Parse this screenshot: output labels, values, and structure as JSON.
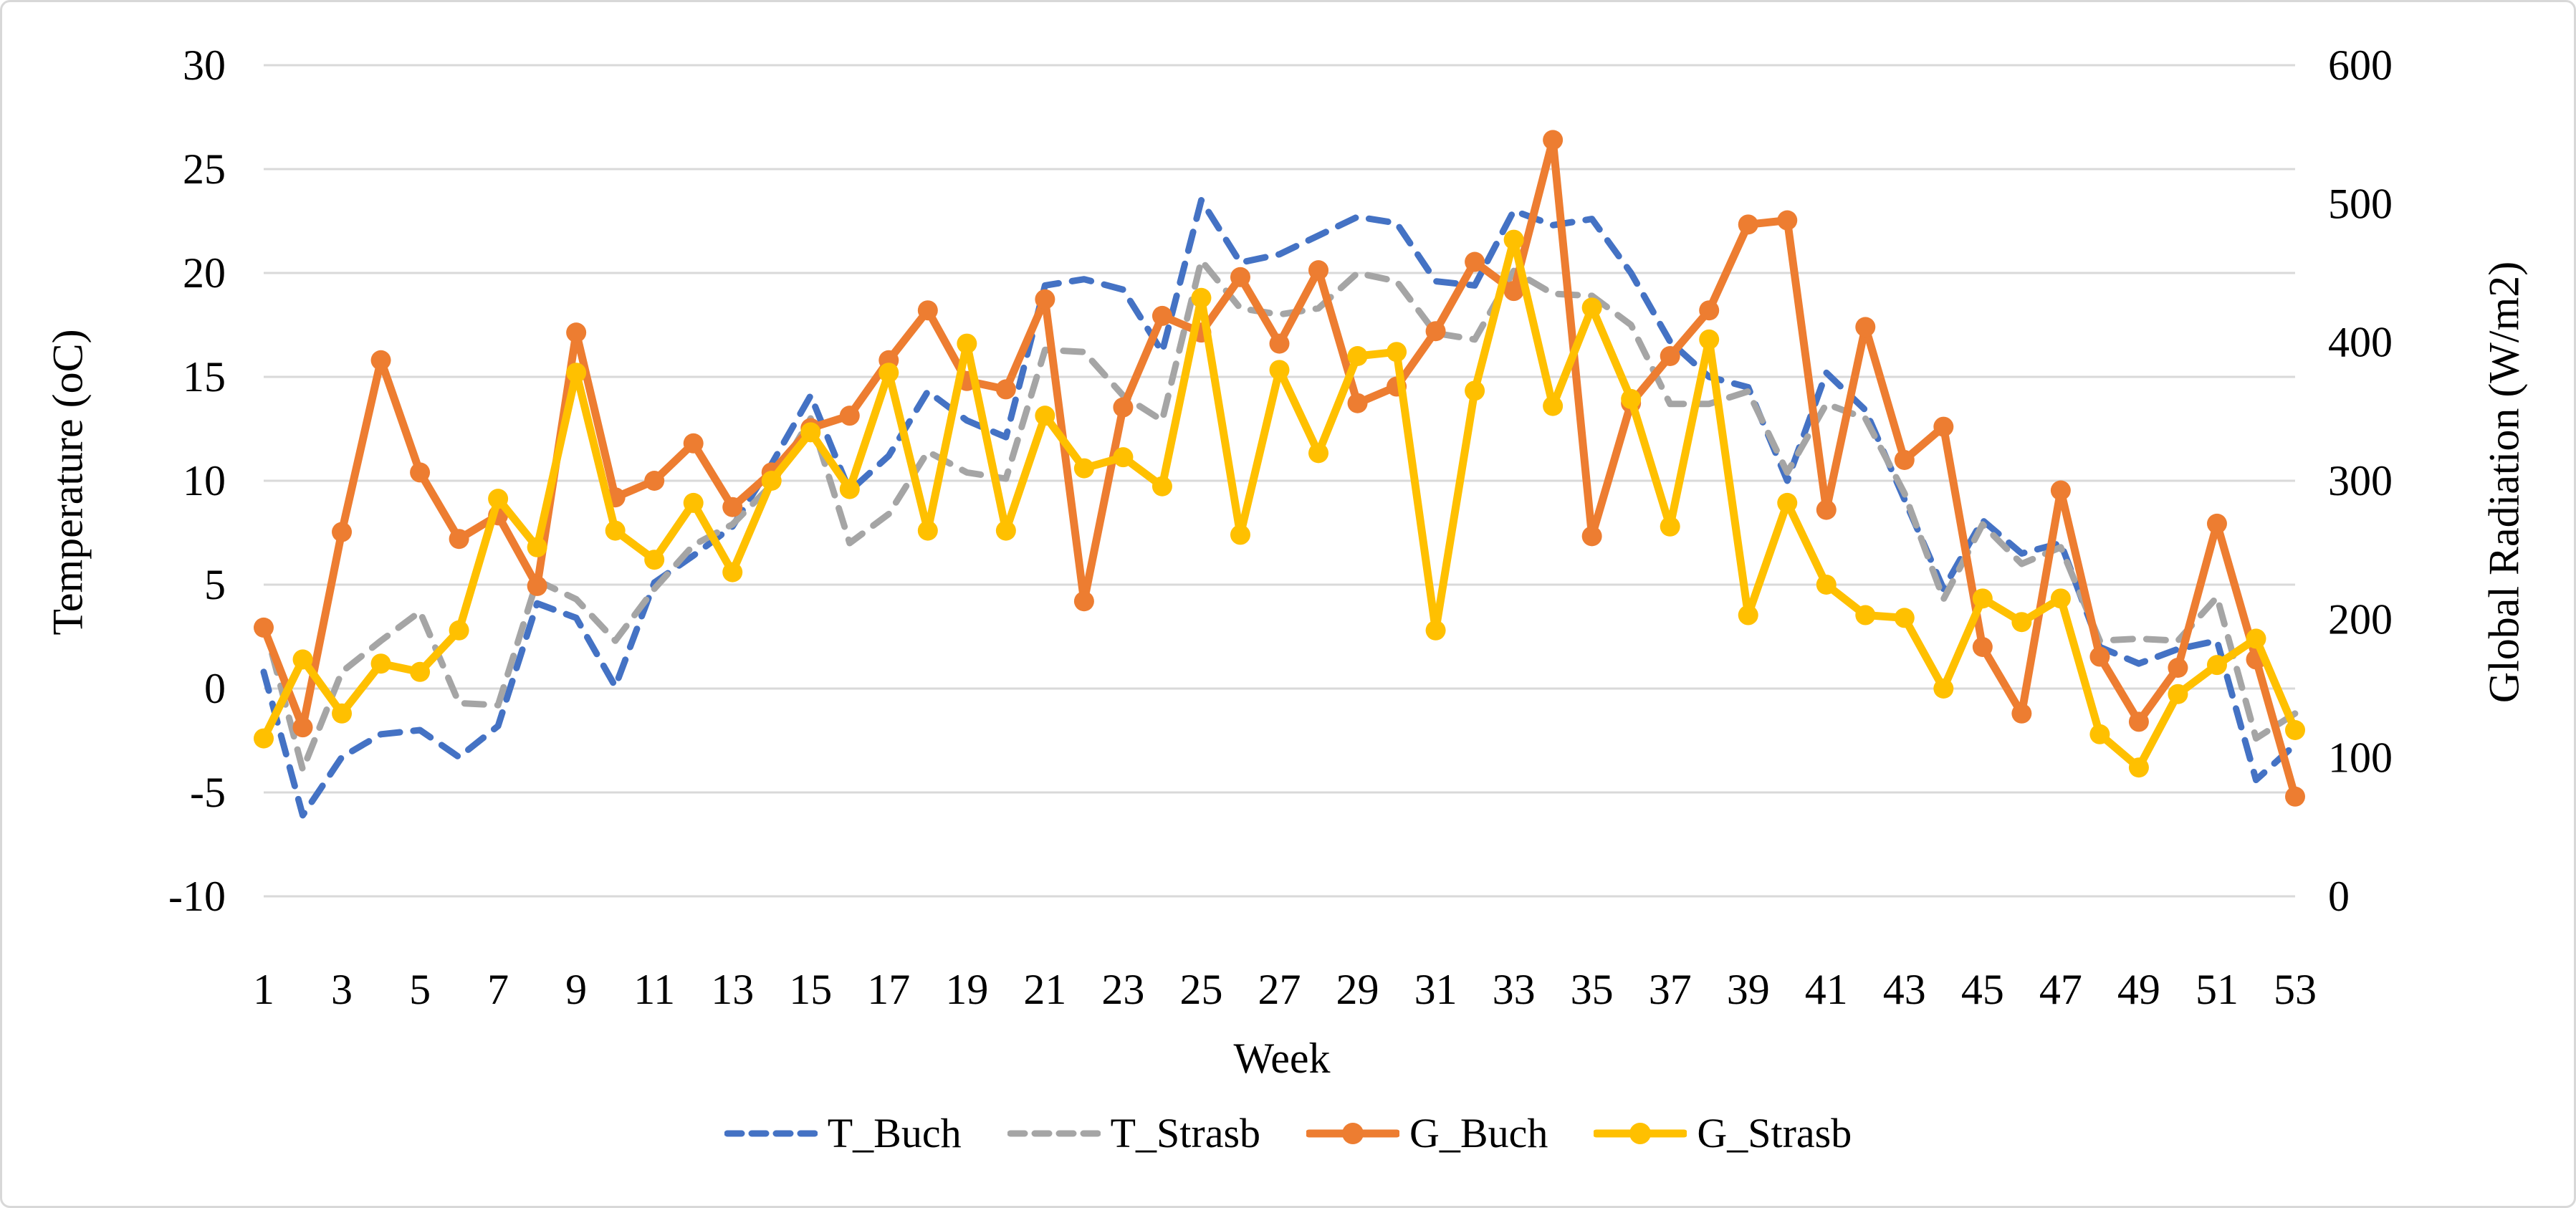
{
  "figure": {
    "left_axis_title": "Temperature (oC)",
    "right_axis_title": "Global Radiation (W/m2)",
    "x_axis_title": "Week",
    "background": "#FFFFFF",
    "border_color": "#D8D8D8",
    "gridline_color": "#D9D9D9",
    "text_color": "#000000"
  },
  "chart_data": {
    "type": "line",
    "title": "",
    "xlabel": "Week",
    "x": [
      1,
      2,
      3,
      4,
      5,
      6,
      7,
      8,
      9,
      10,
      11,
      12,
      13,
      14,
      15,
      16,
      17,
      18,
      19,
      20,
      21,
      22,
      23,
      24,
      25,
      26,
      27,
      28,
      29,
      30,
      31,
      32,
      33,
      34,
      35,
      36,
      37,
      38,
      39,
      40,
      41,
      42,
      43,
      44,
      45,
      46,
      47,
      48,
      49,
      50,
      51,
      52,
      53
    ],
    "x_tick_labels": [
      "1",
      "3",
      "5",
      "7",
      "9",
      "11",
      "13",
      "15",
      "17",
      "19",
      "21",
      "23",
      "25",
      "27",
      "29",
      "31",
      "33",
      "35",
      "37",
      "39",
      "41",
      "43",
      "45",
      "47",
      "49",
      "51",
      "53"
    ],
    "left_axis": {
      "label": "Temperature (oC)",
      "min": -10,
      "max": 30,
      "ticks": [
        30,
        25,
        20,
        15,
        10,
        5,
        0,
        -5,
        -10
      ]
    },
    "right_axis": {
      "label": "Global Radiation (W/m2)",
      "min": 0,
      "max": 600,
      "ticks": [
        600,
        500,
        400,
        300,
        200,
        100,
        0
      ]
    },
    "grid": "horizontal",
    "legend_position": "bottom",
    "series": [
      {
        "name": "T_Buch",
        "axis": "left",
        "color": "#4472C4",
        "style": "dashed",
        "marker": false,
        "values": [
          0.8,
          -6.1,
          -3.3,
          -2.2,
          -2,
          -3.3,
          -1.8,
          4.1,
          3.4,
          0.1,
          5.1,
          6.4,
          7.8,
          10.8,
          14.1,
          9.5,
          11.2,
          14.3,
          12.9,
          12.1,
          19.4,
          19.7,
          19.2,
          16.2,
          23.5,
          20.5,
          20.9,
          21.8,
          22.7,
          22.4,
          19.6,
          19.4,
          23,
          22.3,
          22.6,
          20,
          16.7,
          15,
          14.5,
          10,
          15.2,
          13.4,
          9.1,
          4.8,
          8.1,
          6.5,
          7,
          2,
          1.2,
          1.9,
          2.3,
          -4.4,
          -2.7
        ]
      },
      {
        "name": "T_Strasb",
        "axis": "left",
        "color": "#A5A5A5",
        "style": "dashed",
        "marker": false,
        "values": [
          3.2,
          -3.9,
          0.8,
          2.3,
          3.7,
          -0.7,
          -0.8,
          5.2,
          4.3,
          2.3,
          4.8,
          6.9,
          7.9,
          9.8,
          13,
          7,
          8.4,
          11.4,
          10.4,
          10.1,
          16.3,
          16.2,
          14.1,
          12.9,
          20.6,
          18.3,
          18,
          18.3,
          20,
          19.6,
          17.1,
          16.8,
          20.1,
          19,
          18.9,
          17.5,
          13.7,
          13.7,
          14.3,
          10.4,
          13.7,
          13,
          9.4,
          4.3,
          7.9,
          6,
          6.8,
          2.3,
          2.4,
          2.3,
          4.4,
          -2.4,
          -1.2
        ]
      },
      {
        "name": "G_Buch",
        "axis": "right",
        "color": "#ED7D31",
        "style": "solid",
        "marker": true,
        "values": [
          194,
          122,
          263,
          387,
          306,
          258,
          275,
          224,
          407,
          288,
          300,
          327,
          281,
          306,
          338,
          347,
          387,
          423,
          372,
          366,
          431,
          213,
          353,
          419,
          407,
          447,
          399,
          452,
          356,
          368,
          408,
          458,
          437,
          546,
          260,
          356,
          390,
          423,
          485,
          488,
          279,
          411,
          315,
          339,
          180,
          132,
          293,
          173,
          126,
          165,
          269,
          171,
          72
        ]
      },
      {
        "name": "G_Strasb",
        "axis": "right",
        "color": "#FFC000",
        "style": "solid",
        "marker": true,
        "values": [
          114,
          171,
          132,
          168,
          162,
          192,
          287,
          252,
          378,
          264,
          243,
          284,
          234,
          300,
          335,
          294,
          378,
          264,
          399,
          264,
          347,
          309,
          317,
          296,
          432,
          261,
          380,
          320,
          390,
          393,
          192,
          365,
          474,
          354,
          425,
          359,
          267,
          402,
          203,
          284,
          225,
          203,
          201,
          150,
          215,
          198,
          215,
          117,
          93,
          146,
          167,
          186,
          120
        ]
      }
    ]
  }
}
